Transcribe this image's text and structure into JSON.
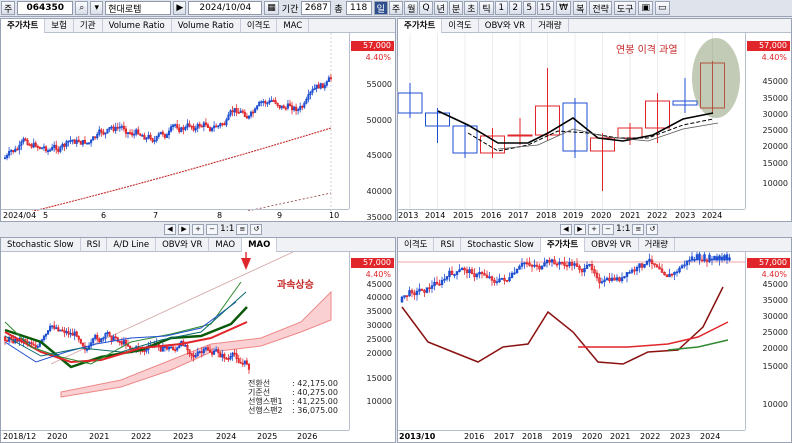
{
  "toolbar": {
    "market": "주",
    "code": "064350",
    "name": "현대로템",
    "date": "2024/10/04",
    "period_label": "기간",
    "period_value": "2687",
    "count_prefix": "총",
    "count_value": "118",
    "period_buttons": [
      "일",
      "주",
      "월",
      "Q",
      "년",
      "분",
      "초",
      "틱",
      "1",
      "2",
      "5",
      "15"
    ],
    "active_period": "일",
    "right_buttons": [
      "₩",
      "복",
      "전략",
      "도구"
    ]
  },
  "panels": {
    "top_left": {
      "tabs": [
        "주가차트",
        "보험",
        "기관",
        "Volume Ratio",
        "Volume Ratio",
        "이격도",
        "MAC"
      ],
      "price_badge": "57,000",
      "pct": "4.40%",
      "y_ticks": [
        "55000",
        "50000",
        "45000",
        "40000",
        "35000"
      ],
      "x_ticks": [
        "2024/04",
        "5",
        "6",
        "7",
        "8",
        "9",
        "10"
      ]
    },
    "top_right": {
      "tabs": [
        "주가차트",
        "이격도",
        "OBV와 VR",
        "거래량"
      ],
      "price_badge": "57,000",
      "pct": "4.40%",
      "y_ticks": [
        "45000",
        "35000",
        "30000",
        "25000",
        "20000",
        "15000",
        "10000"
      ],
      "x_ticks": [
        "2013",
        "2014",
        "2015",
        "2016",
        "2017",
        "2018",
        "2019",
        "2020",
        "2021",
        "2022",
        "2023",
        "2024"
      ],
      "annotation": "연봉 이격 과열"
    },
    "bottom_left": {
      "tabs": [
        "Stochastic Slow",
        "RSI",
        "A/D Line",
        "OBV와 VR",
        "MAO",
        "MAO"
      ],
      "price_badge": "57,000",
      "pct": "4.40%",
      "y_ticks": [
        "45000",
        "40000",
        "35000",
        "30000",
        "25000",
        "20000",
        "15000",
        "10000"
      ],
      "x_ticks": [
        "2018/12",
        "2020",
        "2021",
        "2022",
        "2023",
        "2024",
        "2025",
        "2026"
      ],
      "annotation": "과속상승",
      "ichimoku": [
        {
          "k": "전환선",
          "v": ": 42,175.00"
        },
        {
          "k": "기준선",
          "v": ": 40,275.00"
        },
        {
          "k": "선행스팬1",
          "v": ": 41,225.00"
        },
        {
          "k": "선행스팬2",
          "v": ": 36,075.00"
        }
      ]
    },
    "bottom_right": {
      "tabs": [
        "이격도",
        "RSI",
        "Stochastic Slow",
        "주가차트",
        "OBV와 VR",
        "거래량"
      ],
      "price_badge": "57,000",
      "pct": "4.40%",
      "y_ticks": [
        "45000",
        "35000",
        "30000",
        "25000",
        "20000",
        "15000",
        "10000"
      ],
      "x_ticks": [
        "2013/10",
        "2016",
        "2017",
        "2018",
        "2019",
        "2020",
        "2021",
        "2022",
        "2023",
        "2024"
      ]
    }
  },
  "midbar": {
    "left_scale": "1:1",
    "right_scale": "1:1"
  },
  "colors": {
    "up": "#e0262b",
    "down": "#1f4fd1",
    "accent": "#2f4f8f"
  }
}
